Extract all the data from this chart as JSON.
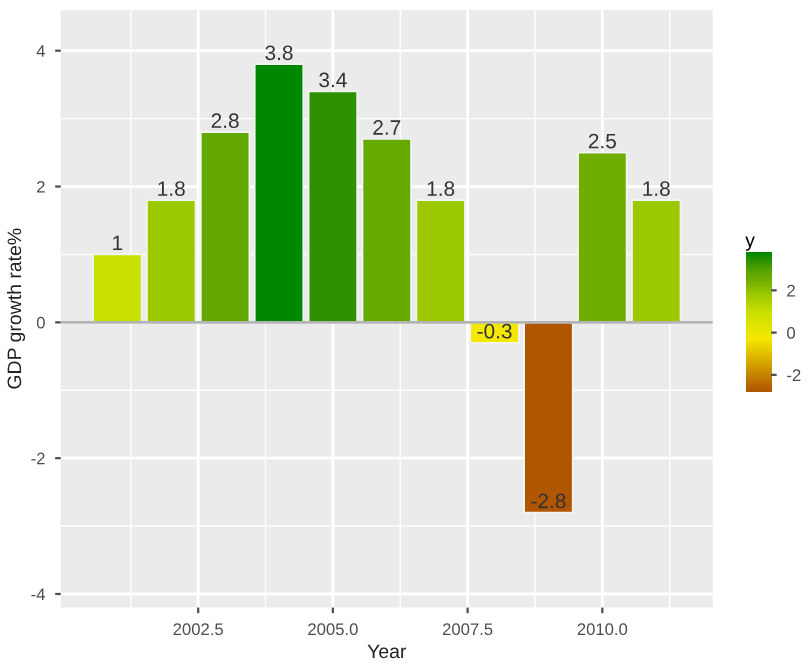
{
  "chart_data": {
    "type": "bar",
    "xlabel": "Year",
    "ylabel": "GDP growth rate%",
    "legend_title": "y",
    "x": [
      2001,
      2002,
      2003,
      2004,
      2005,
      2006,
      2007,
      2008,
      2009,
      2010,
      2011
    ],
    "values": [
      1,
      1.8,
      2.8,
      3.8,
      3.4,
      2.7,
      1.8,
      -0.3,
      -2.8,
      2.5,
      1.8
    ],
    "colors": [
      "#c8e000",
      "#9cc800",
      "#62a800",
      "#008800",
      "#2e9200",
      "#66aa00",
      "#9cc800",
      "#f5e800",
      "#b05500",
      "#6fae00",
      "#9cc800"
    ],
    "data_labels": true,
    "xlim": [
      1999.95,
      2012.05
    ],
    "xticks": [
      {
        "value": 2002.5,
        "label": "2002.5"
      },
      {
        "value": 2005,
        "label": "2005.0"
      },
      {
        "value": 2007.5,
        "label": "2007.5"
      },
      {
        "value": 2010,
        "label": "2010.0"
      }
    ],
    "ylim": [
      -4.2,
      4.6
    ],
    "yticks": [
      -4,
      -2,
      0,
      2,
      4
    ],
    "clim": [
      -2.8,
      3.8
    ],
    "cticks": [
      -2,
      0,
      2
    ],
    "ref_lines": [
      {
        "axis": "y",
        "value": 0,
        "color": "#b4b4b4"
      }
    ],
    "grid": true
  }
}
